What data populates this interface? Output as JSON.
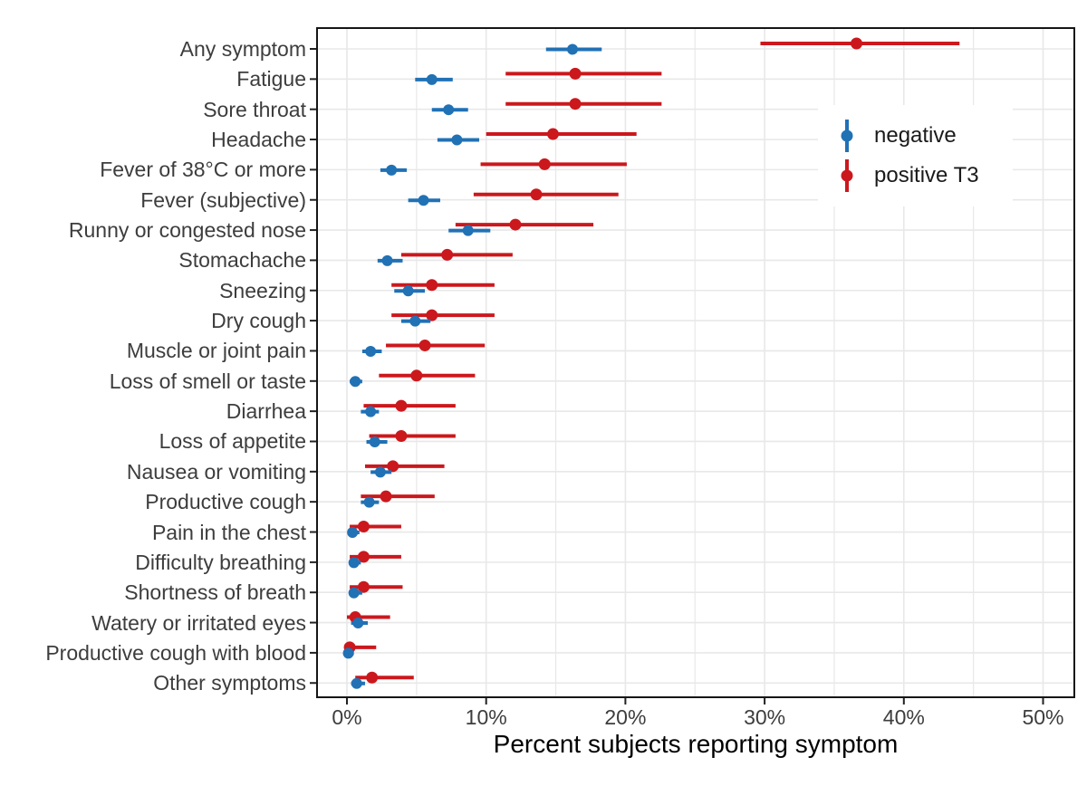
{
  "colors": {
    "negative": "#2171b5",
    "positive": "#cb181d",
    "grid": "#e8e8e8",
    "panel_border": "#161616",
    "tick": "#222222",
    "axis_text": "#3d3d3d",
    "title_text": "#000000",
    "background": "#ffffff"
  },
  "chart_data": {
    "type": "scatter",
    "subtype": "horizontal-pointrange (dot + confidence interval)",
    "title": "",
    "xlabel": "Percent subjects reporting symptom",
    "ylabel": "",
    "xlim": [
      -2,
      54
    ],
    "x_tick_labels": [
      "0%",
      "10%",
      "20%",
      "30%",
      "40%",
      "50%"
    ],
    "x_tick_values": [
      0,
      10,
      20,
      30,
      40,
      50
    ],
    "x_minor_values": [
      5,
      15,
      25,
      35,
      45
    ],
    "grid": true,
    "legend_position": "inside-top-right",
    "categories": [
      "Any symptom",
      "Fatigue",
      "Sore throat",
      "Headache",
      "Fever of 38°C or more",
      "Fever (subjective)",
      "Runny or congested nose",
      "Stomachache",
      "Sneezing",
      "Dry cough",
      "Muscle or joint pain",
      "Loss of smell or taste",
      "Diarrhea",
      "Loss of appetite",
      "Nausea or vomiting",
      "Productive cough",
      "Pain in the chest",
      "Difficulty breathing",
      "Shortness of breath",
      "Watery or irritated eyes",
      "Productive cough with blood",
      "Other symptoms"
    ],
    "series": [
      {
        "name": "negative",
        "color": "#2171b5",
        "values": [
          16.2,
          6.1,
          7.3,
          7.9,
          3.2,
          5.5,
          8.7,
          2.9,
          4.4,
          4.9,
          1.7,
          0.6,
          1.7,
          2.0,
          2.4,
          1.6,
          0.4,
          0.5,
          0.5,
          0.8,
          0.1,
          0.7
        ],
        "ci_low": [
          14.3,
          4.9,
          6.1,
          6.5,
          2.4,
          4.4,
          7.3,
          2.2,
          3.4,
          3.9,
          1.1,
          0.2,
          1.0,
          1.4,
          1.7,
          1.0,
          0.1,
          0.2,
          0.2,
          0.3,
          0.0,
          0.3
        ],
        "ci_high": [
          18.3,
          7.6,
          8.7,
          9.5,
          4.3,
          6.7,
          10.3,
          4.0,
          5.6,
          6.0,
          2.5,
          1.1,
          2.3,
          2.9,
          3.2,
          2.3,
          0.9,
          1.0,
          1.1,
          1.5,
          0.5,
          1.3
        ]
      },
      {
        "name": "positive T3",
        "color": "#cb181d",
        "values": [
          36.6,
          16.4,
          16.4,
          14.8,
          14.2,
          13.6,
          12.1,
          7.2,
          6.1,
          6.1,
          5.6,
          5.0,
          3.9,
          3.9,
          3.3,
          2.8,
          1.2,
          1.2,
          1.2,
          0.6,
          0.2,
          1.8
        ],
        "ci_low": [
          29.7,
          11.4,
          11.4,
          10.0,
          9.6,
          9.1,
          7.8,
          3.9,
          3.2,
          3.2,
          2.8,
          2.3,
          1.2,
          1.6,
          1.3,
          1.0,
          0.2,
          0.2,
          0.2,
          0.0,
          0.0,
          0.6
        ],
        "ci_high": [
          44.0,
          22.6,
          22.6,
          20.8,
          20.1,
          19.5,
          17.7,
          11.9,
          10.6,
          10.6,
          9.9,
          9.2,
          7.8,
          7.8,
          7.0,
          6.3,
          3.9,
          3.9,
          4.0,
          3.1,
          2.1,
          4.8
        ]
      }
    ]
  }
}
